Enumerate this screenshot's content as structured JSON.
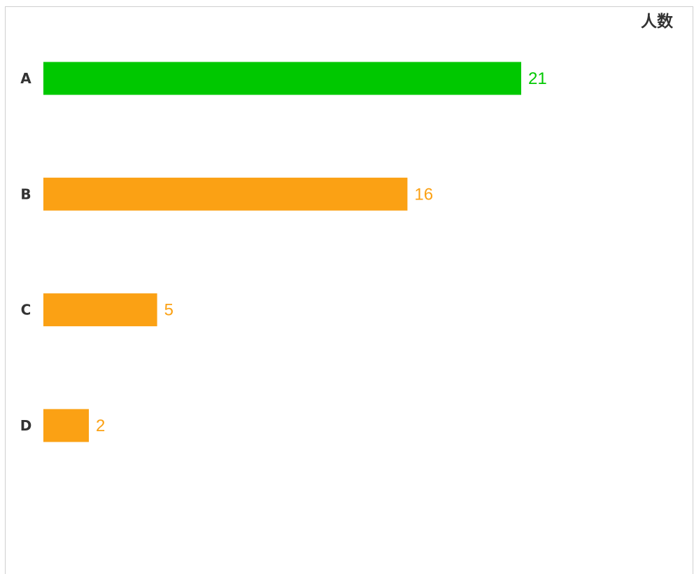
{
  "chart_data": {
    "type": "bar",
    "orientation": "horizontal",
    "title": "",
    "value_axis_label": "人数",
    "categories": [
      "A",
      "B",
      "C",
      "D"
    ],
    "values": [
      21,
      16,
      5,
      2
    ],
    "colors": [
      "#00c800",
      "#fba114",
      "#fba114",
      "#fba114"
    ],
    "label_colors": [
      "#00c800",
      "#fba114",
      "#fba114",
      "#fba114"
    ],
    "xlim": [
      0,
      21
    ],
    "grid": false,
    "legend": "none"
  }
}
